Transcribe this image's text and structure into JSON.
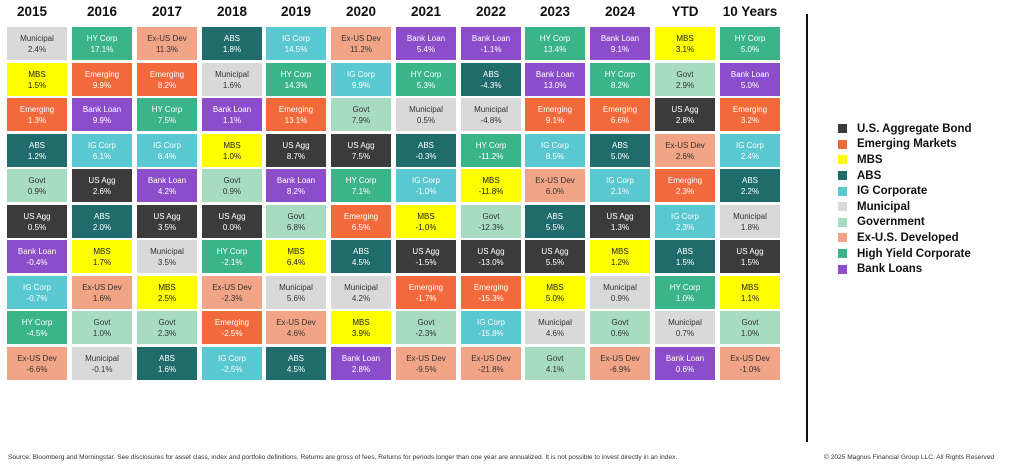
{
  "chart_data": {
    "type": "table",
    "columns": [
      "2015",
      "2016",
      "2017",
      "2018",
      "2019",
      "2020",
      "2021",
      "2022",
      "2023",
      "2024",
      "YTD",
      "10 Years"
    ],
    "cells": [
      [
        {
          "a": "Municipal",
          "v": "2.4%"
        },
        {
          "a": "MBS",
          "v": "1.5%"
        },
        {
          "a": "Emerging",
          "v": "1.3%"
        },
        {
          "a": "ABS",
          "v": "1.2%"
        },
        {
          "a": "Govt",
          "v": "0.9%"
        },
        {
          "a": "US Agg",
          "v": "0.5%"
        },
        {
          "a": "Bank Loan",
          "v": "-0.4%"
        },
        {
          "a": "IG Corp",
          "v": "-0.7%"
        },
        {
          "a": "HY Corp",
          "v": "-4.5%"
        },
        {
          "a": "Ex-US Dev",
          "v": "-6.6%"
        }
      ],
      [
        {
          "a": "HY Corp",
          "v": "17.1%"
        },
        {
          "a": "Emerging",
          "v": "9.9%"
        },
        {
          "a": "Bank Loan",
          "v": "9.9%"
        },
        {
          "a": "IG Corp",
          "v": "6.1%"
        },
        {
          "a": "US Agg",
          "v": "2.6%"
        },
        {
          "a": "ABS",
          "v": "2.0%"
        },
        {
          "a": "MBS",
          "v": "1.7%"
        },
        {
          "a": "Ex-US Dev",
          "v": "1.6%"
        },
        {
          "a": "Govt",
          "v": "1.0%"
        },
        {
          "a": "Municipal",
          "v": "-0.1%"
        }
      ],
      [
        {
          "a": "Ex-US Dev",
          "v": "11.3%"
        },
        {
          "a": "Emerging",
          "v": "8.2%"
        },
        {
          "a": "HY Corp",
          "v": "7.5%"
        },
        {
          "a": "IG Corp",
          "v": "6.4%"
        },
        {
          "a": "Bank Loan",
          "v": "4.2%"
        },
        {
          "a": "US Agg",
          "v": "3.5%"
        },
        {
          "a": "Municipal",
          "v": "3.5%"
        },
        {
          "a": "MBS",
          "v": "2.5%"
        },
        {
          "a": "Govt",
          "v": "2.3%"
        },
        {
          "a": "ABS",
          "v": "1.6%"
        }
      ],
      [
        {
          "a": "ABS",
          "v": "1.8%"
        },
        {
          "a": "Municipal",
          "v": "1.6%"
        },
        {
          "a": "Bank Loan",
          "v": "1.1%"
        },
        {
          "a": "MBS",
          "v": "1.0%"
        },
        {
          "a": "Govt",
          "v": "0.9%"
        },
        {
          "a": "US Agg",
          "v": "0.0%"
        },
        {
          "a": "HY Corp",
          "v": "-2.1%"
        },
        {
          "a": "Ex-US Dev",
          "v": "-2.3%"
        },
        {
          "a": "Emerging",
          "v": "-2.5%"
        },
        {
          "a": "IG Corp",
          "v": "-2.5%"
        }
      ],
      [
        {
          "a": "IG Corp",
          "v": "14.5%"
        },
        {
          "a": "HY Corp",
          "v": "14.3%"
        },
        {
          "a": "Emerging",
          "v": "13.1%"
        },
        {
          "a": "US Agg",
          "v": "8.7%"
        },
        {
          "a": "Bank Loan",
          "v": "8.2%"
        },
        {
          "a": "Govt",
          "v": "6.8%"
        },
        {
          "a": "MBS",
          "v": "6.4%"
        },
        {
          "a": "Municipal",
          "v": "5.6%"
        },
        {
          "a": "Ex-US Dev",
          "v": "4.6%"
        },
        {
          "a": "ABS",
          "v": "4.5%"
        }
      ],
      [
        {
          "a": "Ex-US Dev",
          "v": "11.2%"
        },
        {
          "a": "IG Corp",
          "v": "9.9%"
        },
        {
          "a": "Govt",
          "v": "7.9%"
        },
        {
          "a": "US Agg",
          "v": "7.5%"
        },
        {
          "a": "HY Corp",
          "v": "7.1%"
        },
        {
          "a": "Emerging",
          "v": "6.5%"
        },
        {
          "a": "ABS",
          "v": "4.5%"
        },
        {
          "a": "Municipal",
          "v": "4.2%"
        },
        {
          "a": "MBS",
          "v": "3.9%"
        },
        {
          "a": "Bank Loan",
          "v": "2.8%"
        }
      ],
      [
        {
          "a": "Bank Loan",
          "v": "5.4%"
        },
        {
          "a": "HY Corp",
          "v": "5.3%"
        },
        {
          "a": "Municipal",
          "v": "0.5%"
        },
        {
          "a": "ABS",
          "v": "-0.3%"
        },
        {
          "a": "IG Corp",
          "v": "-1.0%"
        },
        {
          "a": "MBS",
          "v": "-1.0%"
        },
        {
          "a": "US Agg",
          "v": "-1.5%"
        },
        {
          "a": "Emerging",
          "v": "-1.7%"
        },
        {
          "a": "Govt",
          "v": "-2.3%"
        },
        {
          "a": "Ex-US Dev",
          "v": "-9.5%"
        }
      ],
      [
        {
          "a": "Bank Loan",
          "v": "-1.1%"
        },
        {
          "a": "ABS",
          "v": "-4.3%"
        },
        {
          "a": "Municipal",
          "v": "-4.8%"
        },
        {
          "a": "HY Corp",
          "v": "-11.2%"
        },
        {
          "a": "MBS",
          "v": "-11.8%"
        },
        {
          "a": "Govt",
          "v": "-12.3%"
        },
        {
          "a": "US Agg",
          "v": "-13.0%"
        },
        {
          "a": "Emerging",
          "v": "-15.3%"
        },
        {
          "a": "IG Corp",
          "v": "-15.8%"
        },
        {
          "a": "Ex-US Dev",
          "v": "-21.8%"
        }
      ],
      [
        {
          "a": "HY Corp",
          "v": "13.4%"
        },
        {
          "a": "Bank Loan",
          "v": "13.0%"
        },
        {
          "a": "Emerging",
          "v": "9.1%"
        },
        {
          "a": "IG Corp",
          "v": "8.5%"
        },
        {
          "a": "Ex-US Dev",
          "v": "6.0%"
        },
        {
          "a": "ABS",
          "v": "5.5%"
        },
        {
          "a": "US Agg",
          "v": "5.5%"
        },
        {
          "a": "MBS",
          "v": "5.0%"
        },
        {
          "a": "Municipal",
          "v": "4.6%"
        },
        {
          "a": "Govt",
          "v": "4.1%"
        }
      ],
      [
        {
          "a": "Bank Loan",
          "v": "9.1%"
        },
        {
          "a": "HY Corp",
          "v": "8.2%"
        },
        {
          "a": "Emerging",
          "v": "6.6%"
        },
        {
          "a": "ABS",
          "v": "5.0%"
        },
        {
          "a": "IG Corp",
          "v": "2.1%"
        },
        {
          "a": "US Agg",
          "v": "1.3%"
        },
        {
          "a": "MBS",
          "v": "1.2%"
        },
        {
          "a": "Municipal",
          "v": "0.9%"
        },
        {
          "a": "Govt",
          "v": "0.6%"
        },
        {
          "a": "Ex-US Dev",
          "v": "-6.9%"
        }
      ],
      [
        {
          "a": "MBS",
          "v": "3.1%"
        },
        {
          "a": "Govt",
          "v": "2.9%"
        },
        {
          "a": "US Agg",
          "v": "2.8%"
        },
        {
          "a": "Ex-US Dev",
          "v": "2.6%"
        },
        {
          "a": "Emerging",
          "v": "2.3%"
        },
        {
          "a": "IG Corp",
          "v": "2.3%"
        },
        {
          "a": "ABS",
          "v": "1.5%"
        },
        {
          "a": "HY Corp",
          "v": "1.0%"
        },
        {
          "a": "Municipal",
          "v": "0.7%"
        },
        {
          "a": "Bank Loan",
          "v": "0.6%"
        }
      ],
      [
        {
          "a": "HY Corp",
          "v": "5.0%"
        },
        {
          "a": "Bank Loan",
          "v": "5.0%"
        },
        {
          "a": "Emerging",
          "v": "3.2%"
        },
        {
          "a": "IG Corp",
          "v": "2.4%"
        },
        {
          "a": "ABS",
          "v": "2.2%"
        },
        {
          "a": "Municipal",
          "v": "1.8%"
        },
        {
          "a": "US Agg",
          "v": "1.5%"
        },
        {
          "a": "MBS",
          "v": "1.1%"
        },
        {
          "a": "Govt",
          "v": "1.0%"
        },
        {
          "a": "Ex-US Dev",
          "v": "-1.0%"
        }
      ]
    ]
  },
  "colors": {
    "US Agg": "#3b3b3b",
    "Emerging": "#f26a3b",
    "MBS": "#ffff00",
    "ABS": "#206c6d",
    "IG Corp": "#5ac8d0",
    "Municipal": "#d9d9d9",
    "Govt": "#a8dcc0",
    "Ex-US Dev": "#f1a486",
    "HY Corp": "#3bb48a",
    "Bank Loan": "#8b4dc9"
  },
  "text_colors": {
    "US Agg": "#ffffff",
    "Emerging": "#ffffff",
    "MBS": "#222222",
    "ABS": "#ffffff",
    "IG Corp": "#ffffff",
    "Municipal": "#333333",
    "Govt": "#333333",
    "Ex-US Dev": "#333333",
    "HY Corp": "#ffffff",
    "Bank Loan": "#ffffff"
  },
  "legend": [
    {
      "key": "US Agg",
      "label": "U.S. Aggregate Bond"
    },
    {
      "key": "Emerging",
      "label": "Emerging Markets"
    },
    {
      "key": "MBS",
      "label": "MBS"
    },
    {
      "key": "ABS",
      "label": "ABS"
    },
    {
      "key": "IG Corp",
      "label": "IG Corporate"
    },
    {
      "key": "Municipal",
      "label": "Municipal"
    },
    {
      "key": "Govt",
      "label": "Government"
    },
    {
      "key": "Ex-US Dev",
      "label": "Ex-U.S. Developed"
    },
    {
      "key": "HY Corp",
      "label": "High Yield Corporate"
    },
    {
      "key": "Bank Loan",
      "label": "Bank Loans"
    }
  ],
  "footer": {
    "source": "Source: Bloomberg and Morningstar. See disclosures for asset class, index and portfolio definitions. Returns are gross of fees. Returns for periods longer than one year are annualized. It is not possible to invest directly in an index.",
    "copyright": "© 2025 Magnus Financial Group LLC. All Rights Reserved"
  }
}
